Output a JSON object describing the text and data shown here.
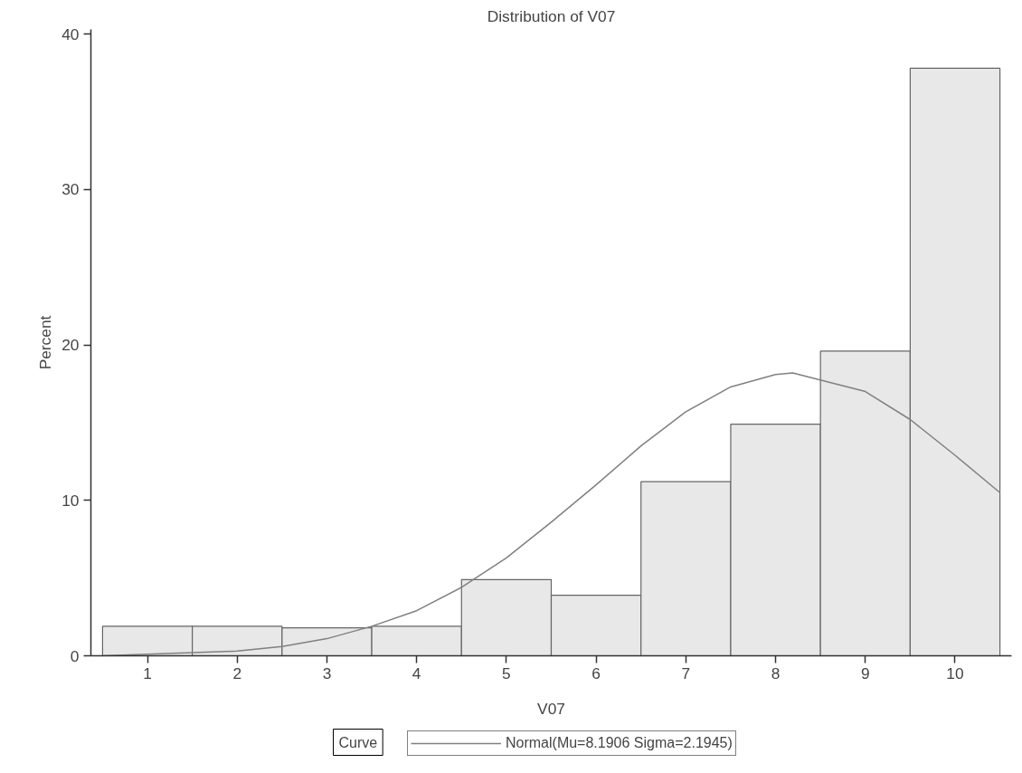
{
  "chart_data": {
    "type": "histogram",
    "title": "Distribution of V07",
    "xlabel": "V07",
    "ylabel": "Percent",
    "bins": [
      0.5,
      1.5,
      2.5,
      3.5,
      4.5,
      5.5,
      6.5,
      7.5,
      8.5,
      9.5,
      10.5
    ],
    "values": [
      1.9,
      1.9,
      1.8,
      1.9,
      4.9,
      3.9,
      11.2,
      14.9,
      19.6,
      37.8
    ],
    "color": "#e8e8e8",
    "series": [
      {
        "type": "line",
        "name": "Normal(Mu=8.1906 Sigma=2.1945)",
        "color": "#808080",
        "x": [
          0.5,
          1,
          1.5,
          2,
          2.5,
          3,
          3.5,
          4,
          4.5,
          5,
          5.5,
          6,
          6.5,
          7,
          7.5,
          8,
          8.19,
          9,
          9.5,
          10,
          10.5
        ],
        "values": [
          0.0,
          0.1,
          0.2,
          0.3,
          0.6,
          1.1,
          1.9,
          2.9,
          4.4,
          6.3,
          8.6,
          11.0,
          13.5,
          15.7,
          17.3,
          18.1,
          18.2,
          17.0,
          15.2,
          12.9,
          10.5
        ]
      }
    ],
    "legend_title": "Curve",
    "legend": "bottom",
    "xlim": [
      0.37,
      10.63
    ],
    "xticks": [
      1,
      2,
      3,
      4,
      5,
      6,
      7,
      8,
      9,
      10
    ],
    "ylim": [
      0,
      40.3
    ],
    "yticks": [
      0,
      10,
      20,
      30,
      40
    ],
    "grid": false,
    "line_style": "solid",
    "marker": "none"
  }
}
